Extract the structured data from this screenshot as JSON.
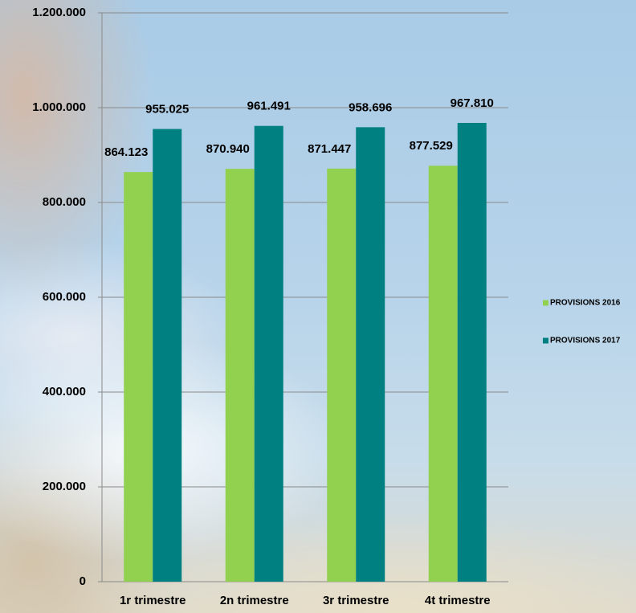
{
  "chart_data": {
    "type": "bar",
    "categories": [
      "1r trimestre",
      "2n trimestre",
      "3r trimestre",
      "4t trimestre"
    ],
    "series": [
      {
        "name": "PROVISIONS 2016",
        "color": "#92d050",
        "values": [
          864123,
          870940,
          871447,
          877529
        ],
        "value_labels": [
          "864.123",
          "870.940",
          "871.447",
          "877.529"
        ]
      },
      {
        "name": "PROVISIONS 2017",
        "color": "#008080",
        "values": [
          955025,
          961491,
          958696,
          967810
        ],
        "value_labels": [
          "955.025",
          "961.491",
          "958.696",
          "967.810"
        ]
      }
    ],
    "ylim": [
      0,
      1200000
    ],
    "yticks": [
      0,
      {
        "value": 200000,
        "label": "200.000"
      },
      {
        "value": 400000,
        "label": "400.000"
      },
      {
        "value": 600000,
        "label": "600.000"
      },
      {
        "value": 800000,
        "label": "800.000"
      },
      {
        "value": 1000000,
        "label": "1.000.000"
      },
      {
        "value": 1200000,
        "label": "1.200.000"
      }
    ],
    "grid": true,
    "legend": "right"
  }
}
